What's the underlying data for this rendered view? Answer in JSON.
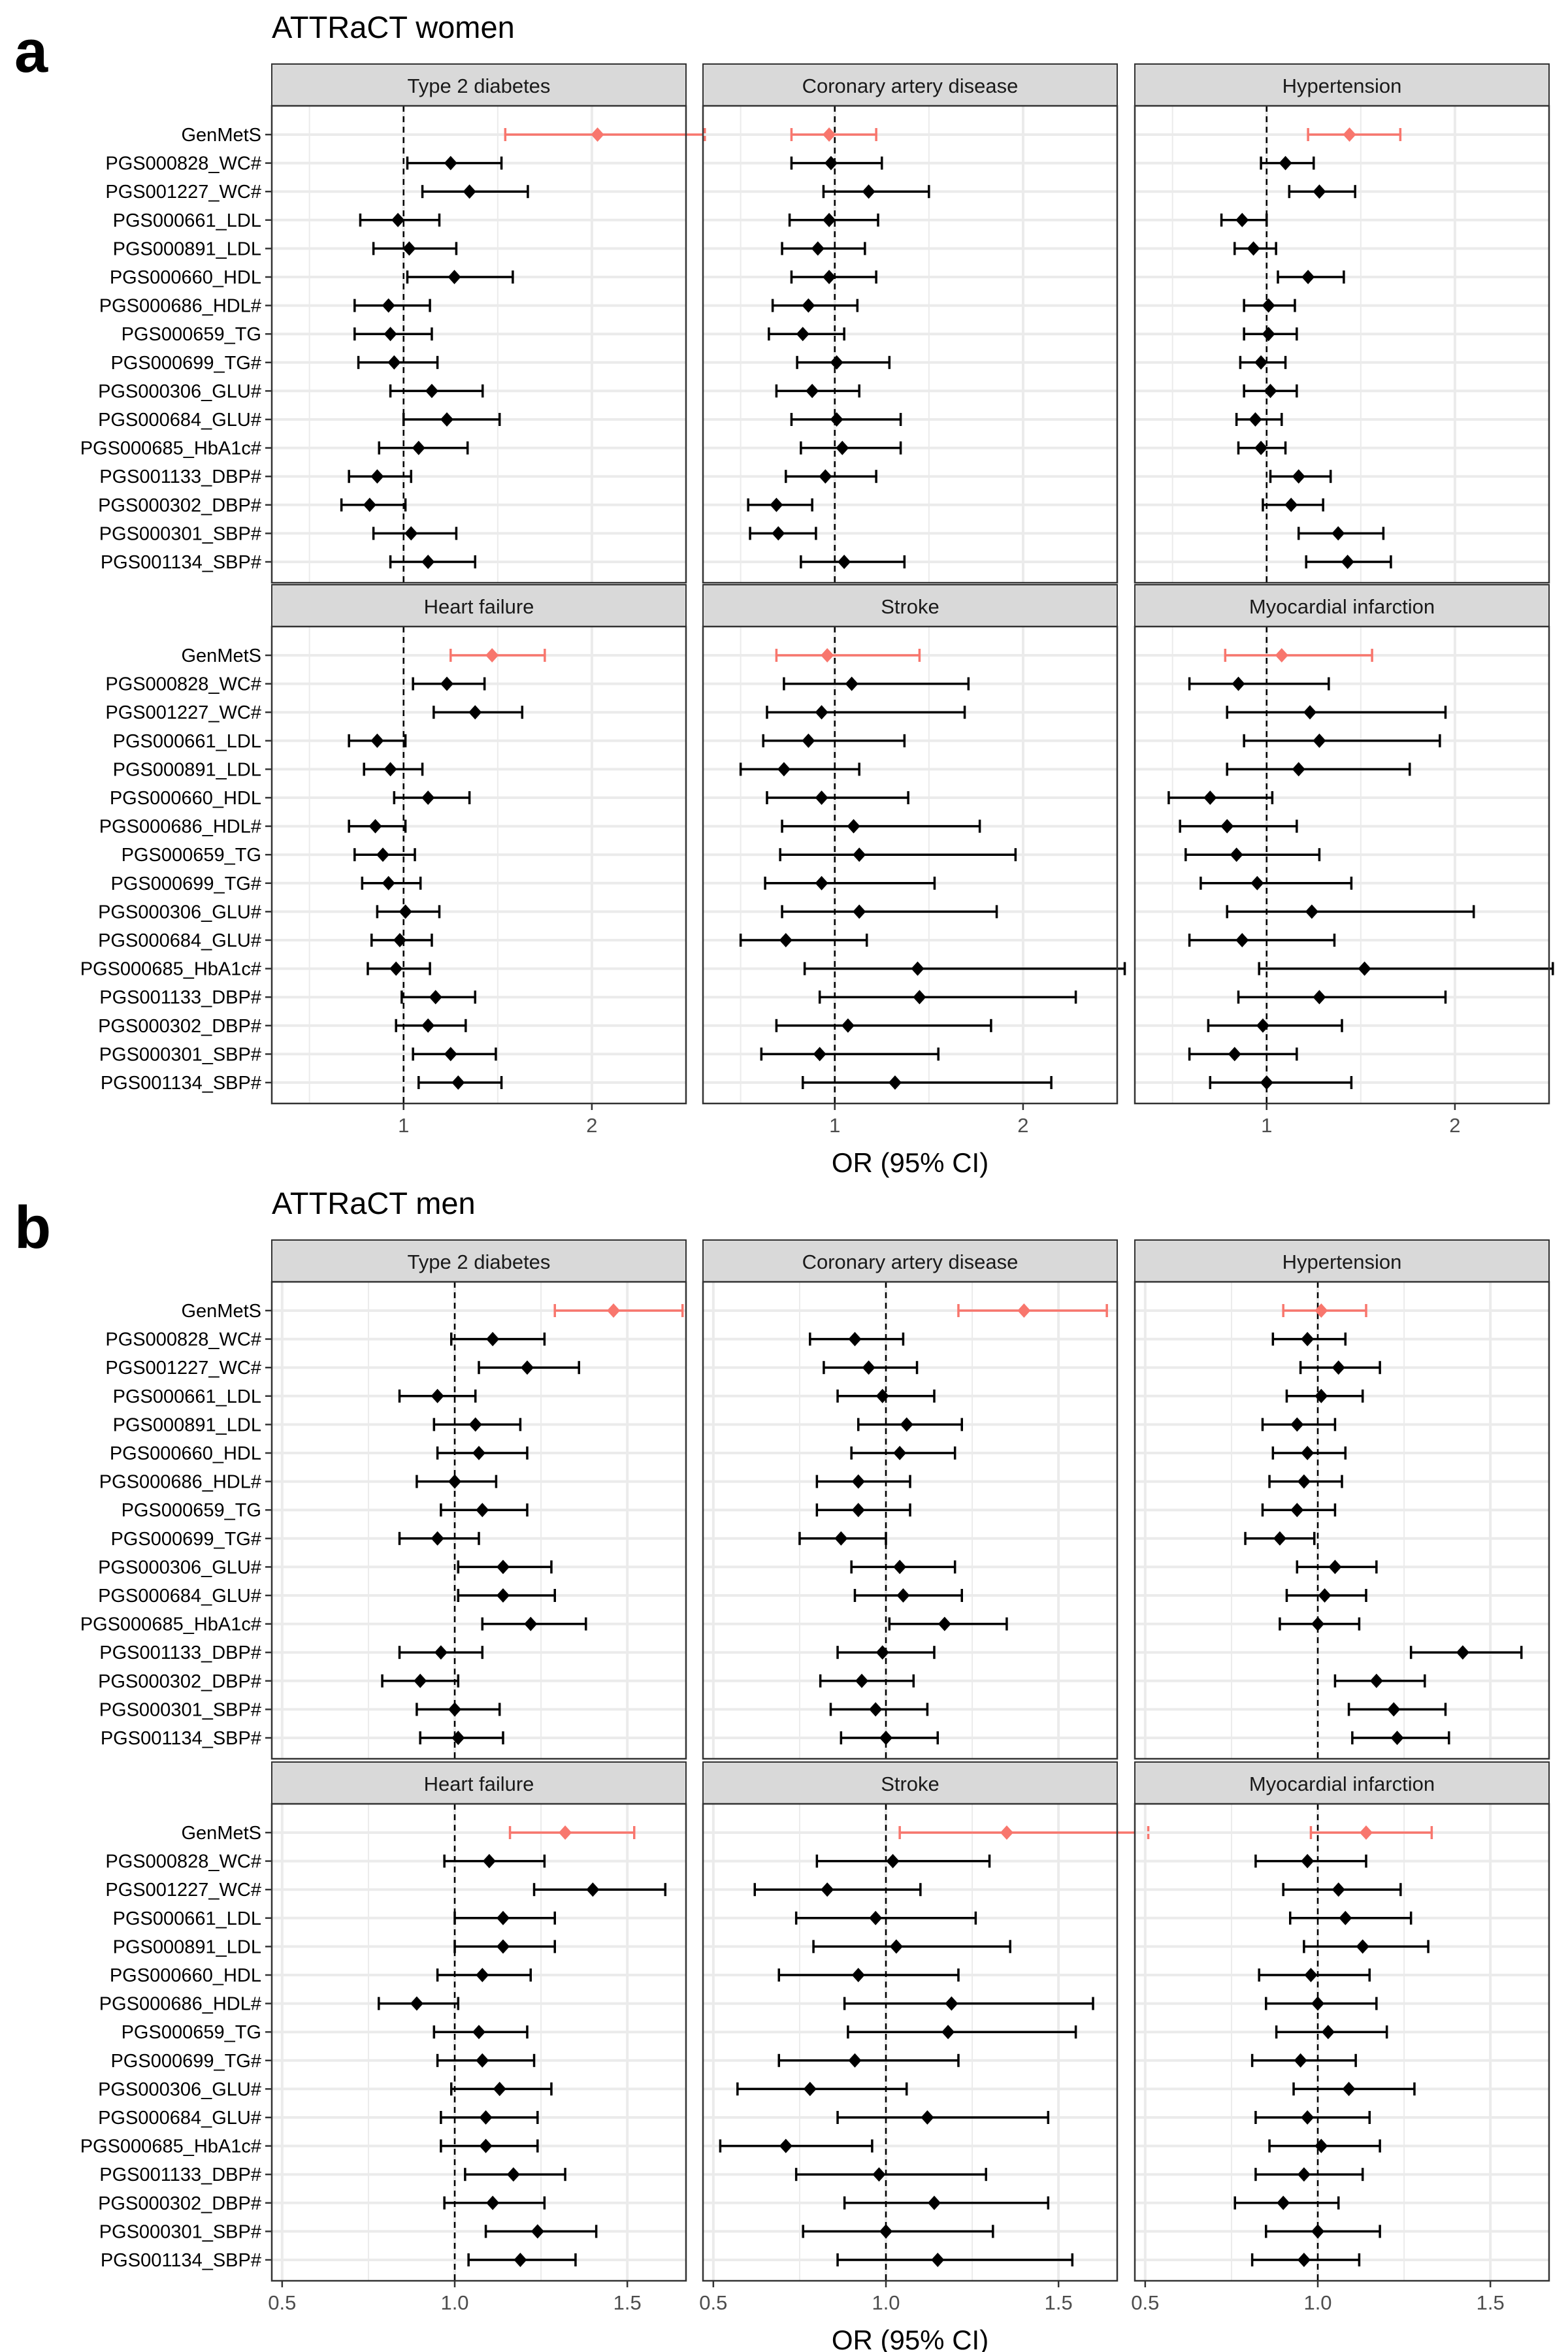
{
  "figure": {
    "rows": [
      "GenMetS",
      "PGS000828_WC#",
      "PGS001227_WC#",
      "PGS000661_LDL",
      "PGS000891_LDL",
      "PGS000660_HDL",
      "PGS000686_HDL#",
      "PGS000659_TG",
      "PGS000699_TG#",
      "PGS000306_GLU#",
      "PGS000684_GLU#",
      "PGS000685_HbA1c#",
      "PGS001133_DBP#",
      "PGS000302_DBP#",
      "PGS000301_SBP#",
      "PGS001134_SBP#"
    ],
    "highlight_row": "GenMetS",
    "colors": {
      "highlight": "#F8766D",
      "default": "#000000",
      "strip_fill": "#D9D9D9",
      "grid": "#EBEBEB"
    },
    "panels": [
      {
        "letter": "a",
        "title": "ATTRaCT women",
        "xlabel": "OR (95% CI)",
        "xlim": [
          0.3,
          2.5
        ],
        "xticks": [
          "1",
          "2"
        ],
        "xtick_values": [
          1,
          2
        ],
        "grid_minor": [
          0.5,
          1.5
        ],
        "refline": 1.0
      },
      {
        "letter": "b",
        "title": "ATTRaCT men",
        "xlabel": "OR (95% CI)",
        "xlim": [
          0.47,
          1.67
        ],
        "xticks": [
          "0.5",
          "1.0",
          "1.5"
        ],
        "xtick_values": [
          0.5,
          1.0,
          1.5
        ],
        "grid_minor": [
          0.75,
          1.25
        ],
        "refline": 1.0
      }
    ]
  },
  "chart_data": [
    {
      "type": "scatter",
      "title": "ATTRaCT women",
      "facet": "Type 2 diabetes",
      "xlabel": "OR (95% CI)",
      "estimate": [
        2.03,
        1.25,
        1.35,
        0.97,
        1.03,
        1.27,
        0.92,
        0.93,
        0.95,
        1.15,
        1.23,
        1.08,
        0.86,
        0.82,
        1.04,
        1.13
      ],
      "ci_low": [
        1.54,
        1.02,
        1.1,
        0.77,
        0.84,
        1.02,
        0.74,
        0.74,
        0.76,
        0.93,
        1.0,
        0.87,
        0.71,
        0.67,
        0.84,
        0.93
      ],
      "ci_high": [
        2.6,
        1.52,
        1.66,
        1.19,
        1.28,
        1.58,
        1.14,
        1.15,
        1.18,
        1.42,
        1.51,
        1.34,
        1.04,
        1.01,
        1.28,
        1.38
      ]
    },
    {
      "type": "scatter",
      "title": "ATTRaCT women",
      "facet": "Coronary artery disease",
      "xlabel": "OR (95% CI)",
      "estimate": [
        0.97,
        0.98,
        1.18,
        0.97,
        0.91,
        0.97,
        0.86,
        0.83,
        1.01,
        0.88,
        1.01,
        1.04,
        0.95,
        0.69,
        0.7,
        1.05
      ],
      "ci_low": [
        0.77,
        0.77,
        0.94,
        0.76,
        0.72,
        0.77,
        0.67,
        0.65,
        0.8,
        0.69,
        0.77,
        0.82,
        0.74,
        0.54,
        0.55,
        0.82
      ],
      "ci_high": [
        1.22,
        1.25,
        1.5,
        1.23,
        1.16,
        1.22,
        1.12,
        1.05,
        1.29,
        1.13,
        1.35,
        1.35,
        1.22,
        0.88,
        0.9,
        1.37
      ]
    },
    {
      "type": "scatter",
      "title": "ATTRaCT women",
      "facet": "Hypertension",
      "xlabel": "OR (95% CI)",
      "estimate": [
        1.44,
        1.1,
        1.28,
        0.87,
        0.93,
        1.22,
        1.01,
        1.01,
        0.97,
        1.02,
        0.94,
        0.97,
        1.17,
        1.13,
        1.38,
        1.43
      ],
      "ci_low": [
        1.22,
        0.97,
        1.12,
        0.76,
        0.83,
        1.06,
        0.88,
        0.88,
        0.86,
        0.88,
        0.84,
        0.85,
        1.02,
        0.98,
        1.17,
        1.21
      ],
      "ci_high": [
        1.71,
        1.25,
        1.47,
        1.0,
        1.05,
        1.41,
        1.15,
        1.16,
        1.1,
        1.16,
        1.08,
        1.1,
        1.34,
        1.3,
        1.62,
        1.66
      ]
    },
    {
      "type": "scatter",
      "title": "ATTRaCT women",
      "facet": "Heart failure",
      "xlabel": "OR (95% CI)",
      "estimate": [
        1.47,
        1.23,
        1.38,
        0.86,
        0.93,
        1.13,
        0.85,
        0.89,
        0.92,
        1.01,
        0.98,
        0.96,
        1.17,
        1.13,
        1.25,
        1.29
      ],
      "ci_low": [
        1.25,
        1.05,
        1.16,
        0.71,
        0.79,
        0.95,
        0.71,
        0.74,
        0.78,
        0.86,
        0.83,
        0.81,
        0.99,
        0.96,
        1.05,
        1.08
      ],
      "ci_high": [
        1.75,
        1.43,
        1.63,
        1.01,
        1.1,
        1.35,
        1.01,
        1.06,
        1.09,
        1.19,
        1.15,
        1.14,
        1.38,
        1.33,
        1.49,
        1.52
      ]
    },
    {
      "type": "scatter",
      "title": "ATTRaCT women",
      "facet": "Stroke",
      "xlabel": "OR (95% CI)",
      "estimate": [
        0.96,
        1.09,
        0.93,
        0.86,
        0.73,
        0.93,
        1.1,
        1.13,
        0.93,
        1.13,
        0.74,
        1.44,
        1.45,
        1.07,
        0.92,
        1.32
      ],
      "ci_low": [
        0.69,
        0.73,
        0.64,
        0.62,
        0.5,
        0.64,
        0.72,
        0.71,
        0.63,
        0.72,
        0.5,
        0.84,
        0.92,
        0.69,
        0.61,
        0.83
      ],
      "ci_high": [
        1.45,
        1.71,
        1.69,
        1.37,
        1.13,
        1.39,
        1.77,
        1.96,
        1.53,
        1.86,
        1.17,
        2.54,
        2.28,
        1.83,
        1.55,
        2.15
      ]
    },
    {
      "type": "scatter",
      "title": "ATTRaCT women",
      "facet": "Myocardial infarction",
      "xlabel": "OR (95% CI)",
      "estimate": [
        1.08,
        0.85,
        1.23,
        1.28,
        1.17,
        0.7,
        0.79,
        0.84,
        0.95,
        1.24,
        0.87,
        1.52,
        1.28,
        0.98,
        0.83,
        1.0
      ],
      "ci_low": [
        0.78,
        0.59,
        0.79,
        0.88,
        0.79,
        0.48,
        0.54,
        0.57,
        0.65,
        0.79,
        0.59,
        0.96,
        0.85,
        0.69,
        0.59,
        0.7
      ],
      "ci_high": [
        1.56,
        1.33,
        1.95,
        1.92,
        1.76,
        1.03,
        1.16,
        1.28,
        1.45,
        2.1,
        1.36,
        2.52,
        1.95,
        1.4,
        1.16,
        1.45
      ]
    },
    {
      "type": "scatter",
      "title": "ATTRaCT men",
      "facet": "Type 2 diabetes",
      "xlabel": "OR (95% CI)",
      "estimate": [
        1.46,
        1.11,
        1.21,
        0.95,
        1.06,
        1.07,
        1.0,
        1.08,
        0.95,
        1.14,
        1.14,
        1.22,
        0.96,
        0.9,
        1.0,
        1.01
      ],
      "ci_low": [
        1.29,
        0.99,
        1.07,
        0.84,
        0.94,
        0.95,
        0.89,
        0.96,
        0.84,
        1.01,
        1.01,
        1.08,
        0.84,
        0.79,
        0.89,
        0.9
      ],
      "ci_high": [
        1.66,
        1.26,
        1.36,
        1.06,
        1.19,
        1.21,
        1.12,
        1.21,
        1.07,
        1.28,
        1.29,
        1.38,
        1.08,
        1.01,
        1.13,
        1.14
      ]
    },
    {
      "type": "scatter",
      "title": "ATTRaCT men",
      "facet": "Coronary artery disease",
      "xlabel": "OR (95% CI)",
      "estimate": [
        1.4,
        0.91,
        0.95,
        0.99,
        1.06,
        1.04,
        0.92,
        0.92,
        0.87,
        1.04,
        1.05,
        1.17,
        0.99,
        0.93,
        0.97,
        1.0
      ],
      "ci_low": [
        1.21,
        0.78,
        0.82,
        0.86,
        0.92,
        0.9,
        0.8,
        0.8,
        0.75,
        0.9,
        0.91,
        1.01,
        0.86,
        0.81,
        0.84,
        0.87
      ],
      "ci_high": [
        1.64,
        1.05,
        1.09,
        1.14,
        1.22,
        1.2,
        1.07,
        1.07,
        1.0,
        1.2,
        1.22,
        1.35,
        1.14,
        1.08,
        1.12,
        1.15
      ]
    },
    {
      "type": "scatter",
      "title": "ATTRaCT men",
      "facet": "Hypertension",
      "xlabel": "OR (95% CI)",
      "estimate": [
        1.01,
        0.97,
        1.06,
        1.01,
        0.94,
        0.97,
        0.96,
        0.94,
        0.89,
        1.05,
        1.02,
        1.0,
        1.42,
        1.17,
        1.22,
        1.23
      ],
      "ci_low": [
        0.9,
        0.87,
        0.95,
        0.91,
        0.84,
        0.87,
        0.86,
        0.84,
        0.79,
        0.94,
        0.91,
        0.89,
        1.27,
        1.05,
        1.09,
        1.1
      ],
      "ci_high": [
        1.14,
        1.08,
        1.18,
        1.13,
        1.05,
        1.08,
        1.07,
        1.05,
        0.99,
        1.17,
        1.14,
        1.12,
        1.59,
        1.31,
        1.37,
        1.38
      ]
    },
    {
      "type": "scatter",
      "title": "ATTRaCT men",
      "facet": "Heart failure",
      "xlabel": "OR (95% CI)",
      "estimate": [
        1.32,
        1.1,
        1.4,
        1.14,
        1.14,
        1.08,
        0.89,
        1.07,
        1.08,
        1.13,
        1.09,
        1.09,
        1.17,
        1.11,
        1.24,
        1.19
      ],
      "ci_low": [
        1.16,
        0.97,
        1.23,
        1.0,
        1.0,
        0.95,
        0.78,
        0.94,
        0.95,
        0.99,
        0.96,
        0.96,
        1.03,
        0.97,
        1.09,
        1.04
      ],
      "ci_high": [
        1.52,
        1.26,
        1.61,
        1.29,
        1.29,
        1.22,
        1.01,
        1.21,
        1.23,
        1.28,
        1.24,
        1.24,
        1.32,
        1.26,
        1.41,
        1.35
      ]
    },
    {
      "type": "scatter",
      "title": "ATTRaCT men",
      "facet": "Stroke",
      "xlabel": "OR (95% CI)",
      "estimate": [
        1.35,
        1.02,
        0.83,
        0.97,
        1.03,
        0.92,
        1.19,
        1.18,
        0.91,
        0.78,
        1.12,
        0.71,
        0.98,
        1.14,
        1.0,
        1.15
      ],
      "ci_low": [
        1.04,
        0.8,
        0.62,
        0.74,
        0.79,
        0.69,
        0.88,
        0.89,
        0.69,
        0.57,
        0.86,
        0.52,
        0.74,
        0.88,
        0.76,
        0.86
      ],
      "ci_high": [
        1.76,
        1.3,
        1.1,
        1.26,
        1.36,
        1.21,
        1.6,
        1.55,
        1.21,
        1.06,
        1.47,
        0.96,
        1.29,
        1.47,
        1.31,
        1.54
      ]
    },
    {
      "type": "scatter",
      "title": "ATTRaCT men",
      "facet": "Myocardial infarction",
      "xlabel": "OR (95% CI)",
      "estimate": [
        1.14,
        0.97,
        1.06,
        1.08,
        1.13,
        0.98,
        1.0,
        1.03,
        0.95,
        1.09,
        0.97,
        1.01,
        0.96,
        0.9,
        1.0,
        0.96
      ],
      "ci_low": [
        0.98,
        0.82,
        0.9,
        0.92,
        0.96,
        0.83,
        0.85,
        0.88,
        0.81,
        0.93,
        0.82,
        0.86,
        0.82,
        0.76,
        0.85,
        0.81
      ],
      "ci_high": [
        1.33,
        1.14,
        1.24,
        1.27,
        1.32,
        1.15,
        1.17,
        1.2,
        1.11,
        1.28,
        1.15,
        1.18,
        1.13,
        1.06,
        1.18,
        1.12
      ]
    }
  ]
}
